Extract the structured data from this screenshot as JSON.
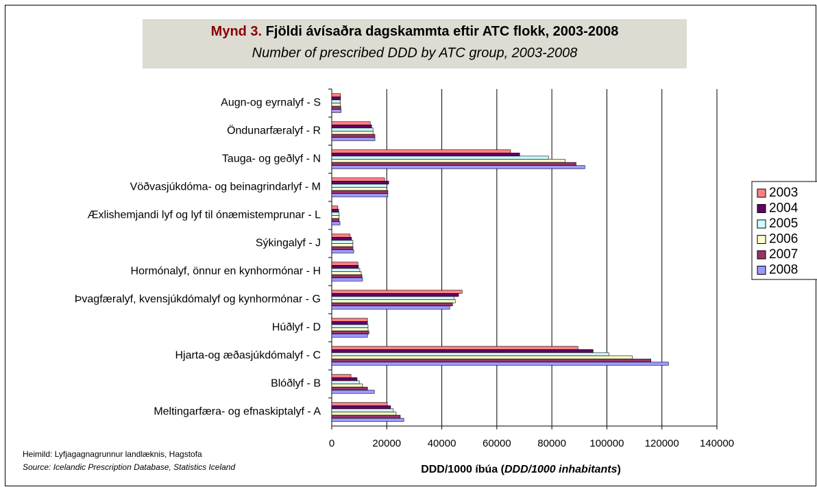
{
  "chart_data": {
    "type": "hbar",
    "figure_label": "Mynd 3.",
    "title": "Fjöldi ávísaðra dagskammta eftir ATC flokk, 2003-2008",
    "subtitle": "Number of prescribed DDD by ATC group, 2003-2008",
    "xlabel": [
      "DDD/1000 íbúa (",
      "DDD/1000 inhabitants",
      ")"
    ],
    "source": "Heimild: Lyfjagagnagrunnur landlæknis, Hagstofa",
    "source_en": "Source: Icelandic Prescription Database, Statistics Iceland",
    "categories": [
      "Augn-og eyrnalyf - S",
      "Öndunarfæralyf - R",
      "Tauga- og geðlyf - N",
      "Vöðvasjúkdóma- og beinagrindarlyf - M",
      "Æxlishemjandi lyf og lyf til ónæmistemprunar - L",
      "Sýkingalyf - J",
      "Hormónalyf, önnur en kynhormónar - H",
      "Þvagfæralyf, kvensjúkdómalyf og kynhormónar - G",
      "Húðlyf - D",
      "Hjarta-og æðasjúkdómalyf - C",
      "Blóðlyf - B",
      "Meltingarfæra- og efnaskiptalyf - A"
    ],
    "series": [
      {
        "name": "2003",
        "color": "#ff8080",
        "values": [
          3200,
          14000,
          65000,
          19200,
          2200,
          6700,
          9500,
          47400,
          13000,
          89500,
          7000,
          20200
        ]
      },
      {
        "name": "2004",
        "color": "#660066",
        "values": [
          3200,
          14500,
          68300,
          20700,
          2500,
          7200,
          9700,
          46100,
          13000,
          95000,
          9200,
          21400
        ]
      },
      {
        "name": "2005",
        "color": "#ccffff",
        "values": [
          3100,
          15000,
          78800,
          20000,
          2700,
          7700,
          10200,
          44400,
          13200,
          100700,
          10000,
          22400
        ]
      },
      {
        "name": "2006",
        "color": "#ffffcc",
        "values": [
          3100,
          15000,
          84800,
          20000,
          2700,
          7700,
          10700,
          44900,
          13200,
          109200,
          11200,
          23400
        ]
      },
      {
        "name": "2007",
        "color": "#993366",
        "values": [
          3300,
          15700,
          88800,
          20400,
          2700,
          7700,
          11000,
          43900,
          13500,
          116000,
          13000,
          24900
        ]
      },
      {
        "name": "2008",
        "color": "#9999ff",
        "values": [
          3400,
          15700,
          92000,
          20400,
          3000,
          8000,
          11200,
          42900,
          13000,
          122400,
          15500,
          26200
        ]
      }
    ],
    "xlim": [
      0,
      140000
    ],
    "xticks": [
      0,
      20000,
      40000,
      60000,
      80000,
      100000,
      120000,
      140000
    ],
    "grid": true,
    "legend": "right"
  }
}
